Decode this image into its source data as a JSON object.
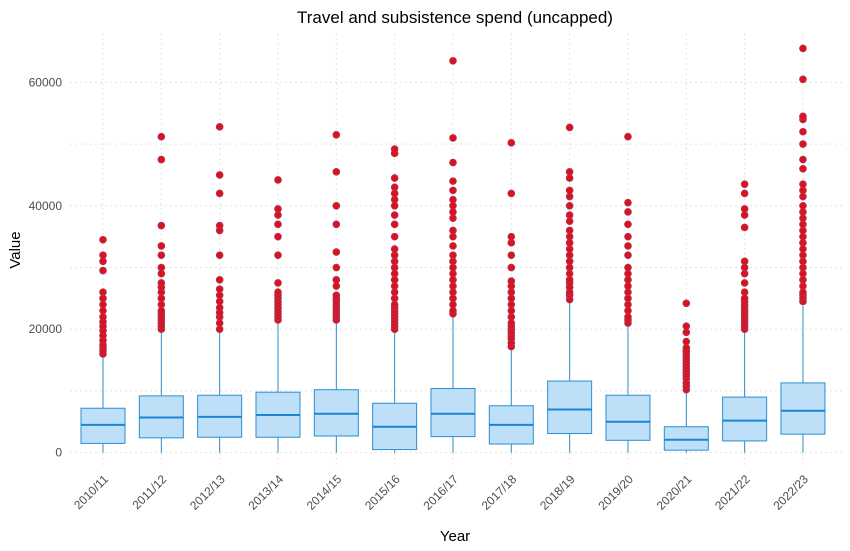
{
  "chart_data": {
    "type": "boxplot",
    "title": "Travel and subsistence spend (uncapped)",
    "xlabel": "Year",
    "ylabel": "Value",
    "ylim": [
      -2000,
      68000
    ],
    "yticks": [
      0,
      20000,
      40000,
      60000
    ],
    "ytick_labels": [
      "0",
      "20000",
      "40000",
      "60000"
    ],
    "grid": true,
    "colors": {
      "box_fill": "#bde0f8",
      "box_stroke": "#2b8ecf",
      "median": "#1a86d0",
      "whisker": "#2b8ecf",
      "outlier": "#e0101a",
      "outlier_edge": "#b03050"
    },
    "categories": [
      "2010/11",
      "2011/12",
      "2012/13",
      "2013/14",
      "2014/15",
      "2015/16",
      "2016/17",
      "2017/18",
      "2018/19",
      "2019/20",
      "2020/21",
      "2021/22",
      "2022/23"
    ],
    "boxes": [
      {
        "min": 0,
        "q1": 1500,
        "median": 4500,
        "q3": 7200,
        "max": 15800,
        "outliers": [
          16000,
          16500,
          17000,
          17500,
          18200,
          19000,
          19800,
          20500,
          21200,
          22000,
          23000,
          24000,
          25000,
          26000,
          29500,
          31000,
          32000,
          34500
        ]
      },
      {
        "min": 0,
        "q1": 2400,
        "median": 5700,
        "q3": 9200,
        "max": 19600,
        "outliers": [
          20000,
          20500,
          21000,
          21500,
          22000,
          22500,
          23000,
          24000,
          25000,
          26000,
          26800,
          27500,
          29000,
          30000,
          32000,
          33500,
          36800,
          47500,
          51200
        ]
      },
      {
        "min": 0,
        "q1": 2500,
        "median": 5800,
        "q3": 9300,
        "max": 19800,
        "outliers": [
          20000,
          21000,
          22000,
          22700,
          23500,
          24500,
          25500,
          26500,
          28000,
          32000,
          36000,
          36800,
          42000,
          45000,
          52800
        ]
      },
      {
        "min": 0,
        "q1": 2500,
        "median": 6100,
        "q3": 9800,
        "max": 21000,
        "outliers": [
          21500,
          22000,
          22500,
          23000,
          23500,
          24000,
          24500,
          25000,
          25500,
          26000,
          27500,
          32000,
          35000,
          37000,
          38500,
          39500,
          44200
        ]
      },
      {
        "min": 0,
        "q1": 2700,
        "median": 6300,
        "q3": 10200,
        "max": 21200,
        "outliers": [
          21500,
          22000,
          22500,
          23000,
          23500,
          24000,
          24500,
          25000,
          25500,
          27000,
          28000,
          30000,
          32500,
          37000,
          40000,
          45500,
          51500
        ]
      },
      {
        "min": 0,
        "q1": 500,
        "median": 4200,
        "q3": 8000,
        "max": 19600,
        "outliers": [
          20000,
          20500,
          21000,
          21500,
          22000,
          22500,
          23000,
          23500,
          24000,
          25000,
          26000,
          27000,
          28000,
          29000,
          30000,
          31000,
          32000,
          33000,
          35000,
          37000,
          38500,
          40000,
          41000,
          42000,
          43000,
          44500,
          48500,
          49200
        ]
      },
      {
        "min": 0,
        "q1": 2600,
        "median": 6300,
        "q3": 10400,
        "max": 22000,
        "outliers": [
          22500,
          23000,
          24000,
          25000,
          26000,
          27000,
          28000,
          29000,
          30000,
          31000,
          32000,
          33500,
          35000,
          36000,
          38000,
          39000,
          40000,
          41000,
          42500,
          44000,
          47000,
          51000,
          63500
        ]
      },
      {
        "min": 0,
        "q1": 1400,
        "median": 4500,
        "q3": 7600,
        "max": 16800,
        "outliers": [
          17200,
          17800,
          18500,
          19000,
          19500,
          20000,
          20500,
          21000,
          22000,
          23000,
          24000,
          25000,
          26000,
          27000,
          27800,
          30000,
          32000,
          34000,
          35000,
          42000,
          50200
        ]
      },
      {
        "min": 0,
        "q1": 3100,
        "median": 7000,
        "q3": 11600,
        "max": 24300,
        "outliers": [
          24800,
          25500,
          26000,
          26800,
          27500,
          28000,
          29000,
          30000,
          31000,
          32000,
          33000,
          34000,
          35000,
          36000,
          37500,
          38500,
          40000,
          41500,
          42500,
          44500,
          45500,
          52700
        ]
      },
      {
        "min": 0,
        "q1": 2000,
        "median": 5000,
        "q3": 9300,
        "max": 20500,
        "outliers": [
          21000,
          21500,
          22000,
          23000,
          24000,
          25000,
          26000,
          27000,
          28000,
          29000,
          30000,
          32000,
          33500,
          35000,
          37000,
          39000,
          40500,
          51200
        ]
      },
      {
        "min": 0,
        "q1": 400,
        "median": 2100,
        "q3": 4200,
        "max": 9800,
        "outliers": [
          10200,
          10800,
          11300,
          12000,
          12500,
          13000,
          13500,
          14000,
          14500,
          15000,
          15500,
          16000,
          16500,
          17000,
          18000,
          19500,
          20500,
          24200
        ]
      },
      {
        "min": 0,
        "q1": 1900,
        "median": 5200,
        "q3": 9000,
        "max": 19500,
        "outliers": [
          20000,
          20500,
          21000,
          21500,
          22000,
          22500,
          23000,
          23500,
          24000,
          24500,
          25000,
          26000,
          27500,
          29000,
          30000,
          31000,
          36500,
          38500,
          39500,
          42000,
          43500
        ]
      },
      {
        "min": 0,
        "q1": 3000,
        "median": 6800,
        "q3": 11300,
        "max": 23800,
        "outliers": [
          24500,
          25000,
          25500,
          26000,
          27000,
          28000,
          29000,
          30000,
          31000,
          32000,
          33000,
          34000,
          35000,
          36000,
          37000,
          38000,
          39000,
          40000,
          41500,
          42500,
          43500,
          46000,
          47500,
          50000,
          52000,
          54000,
          54500,
          60500,
          65500
        ]
      }
    ]
  }
}
